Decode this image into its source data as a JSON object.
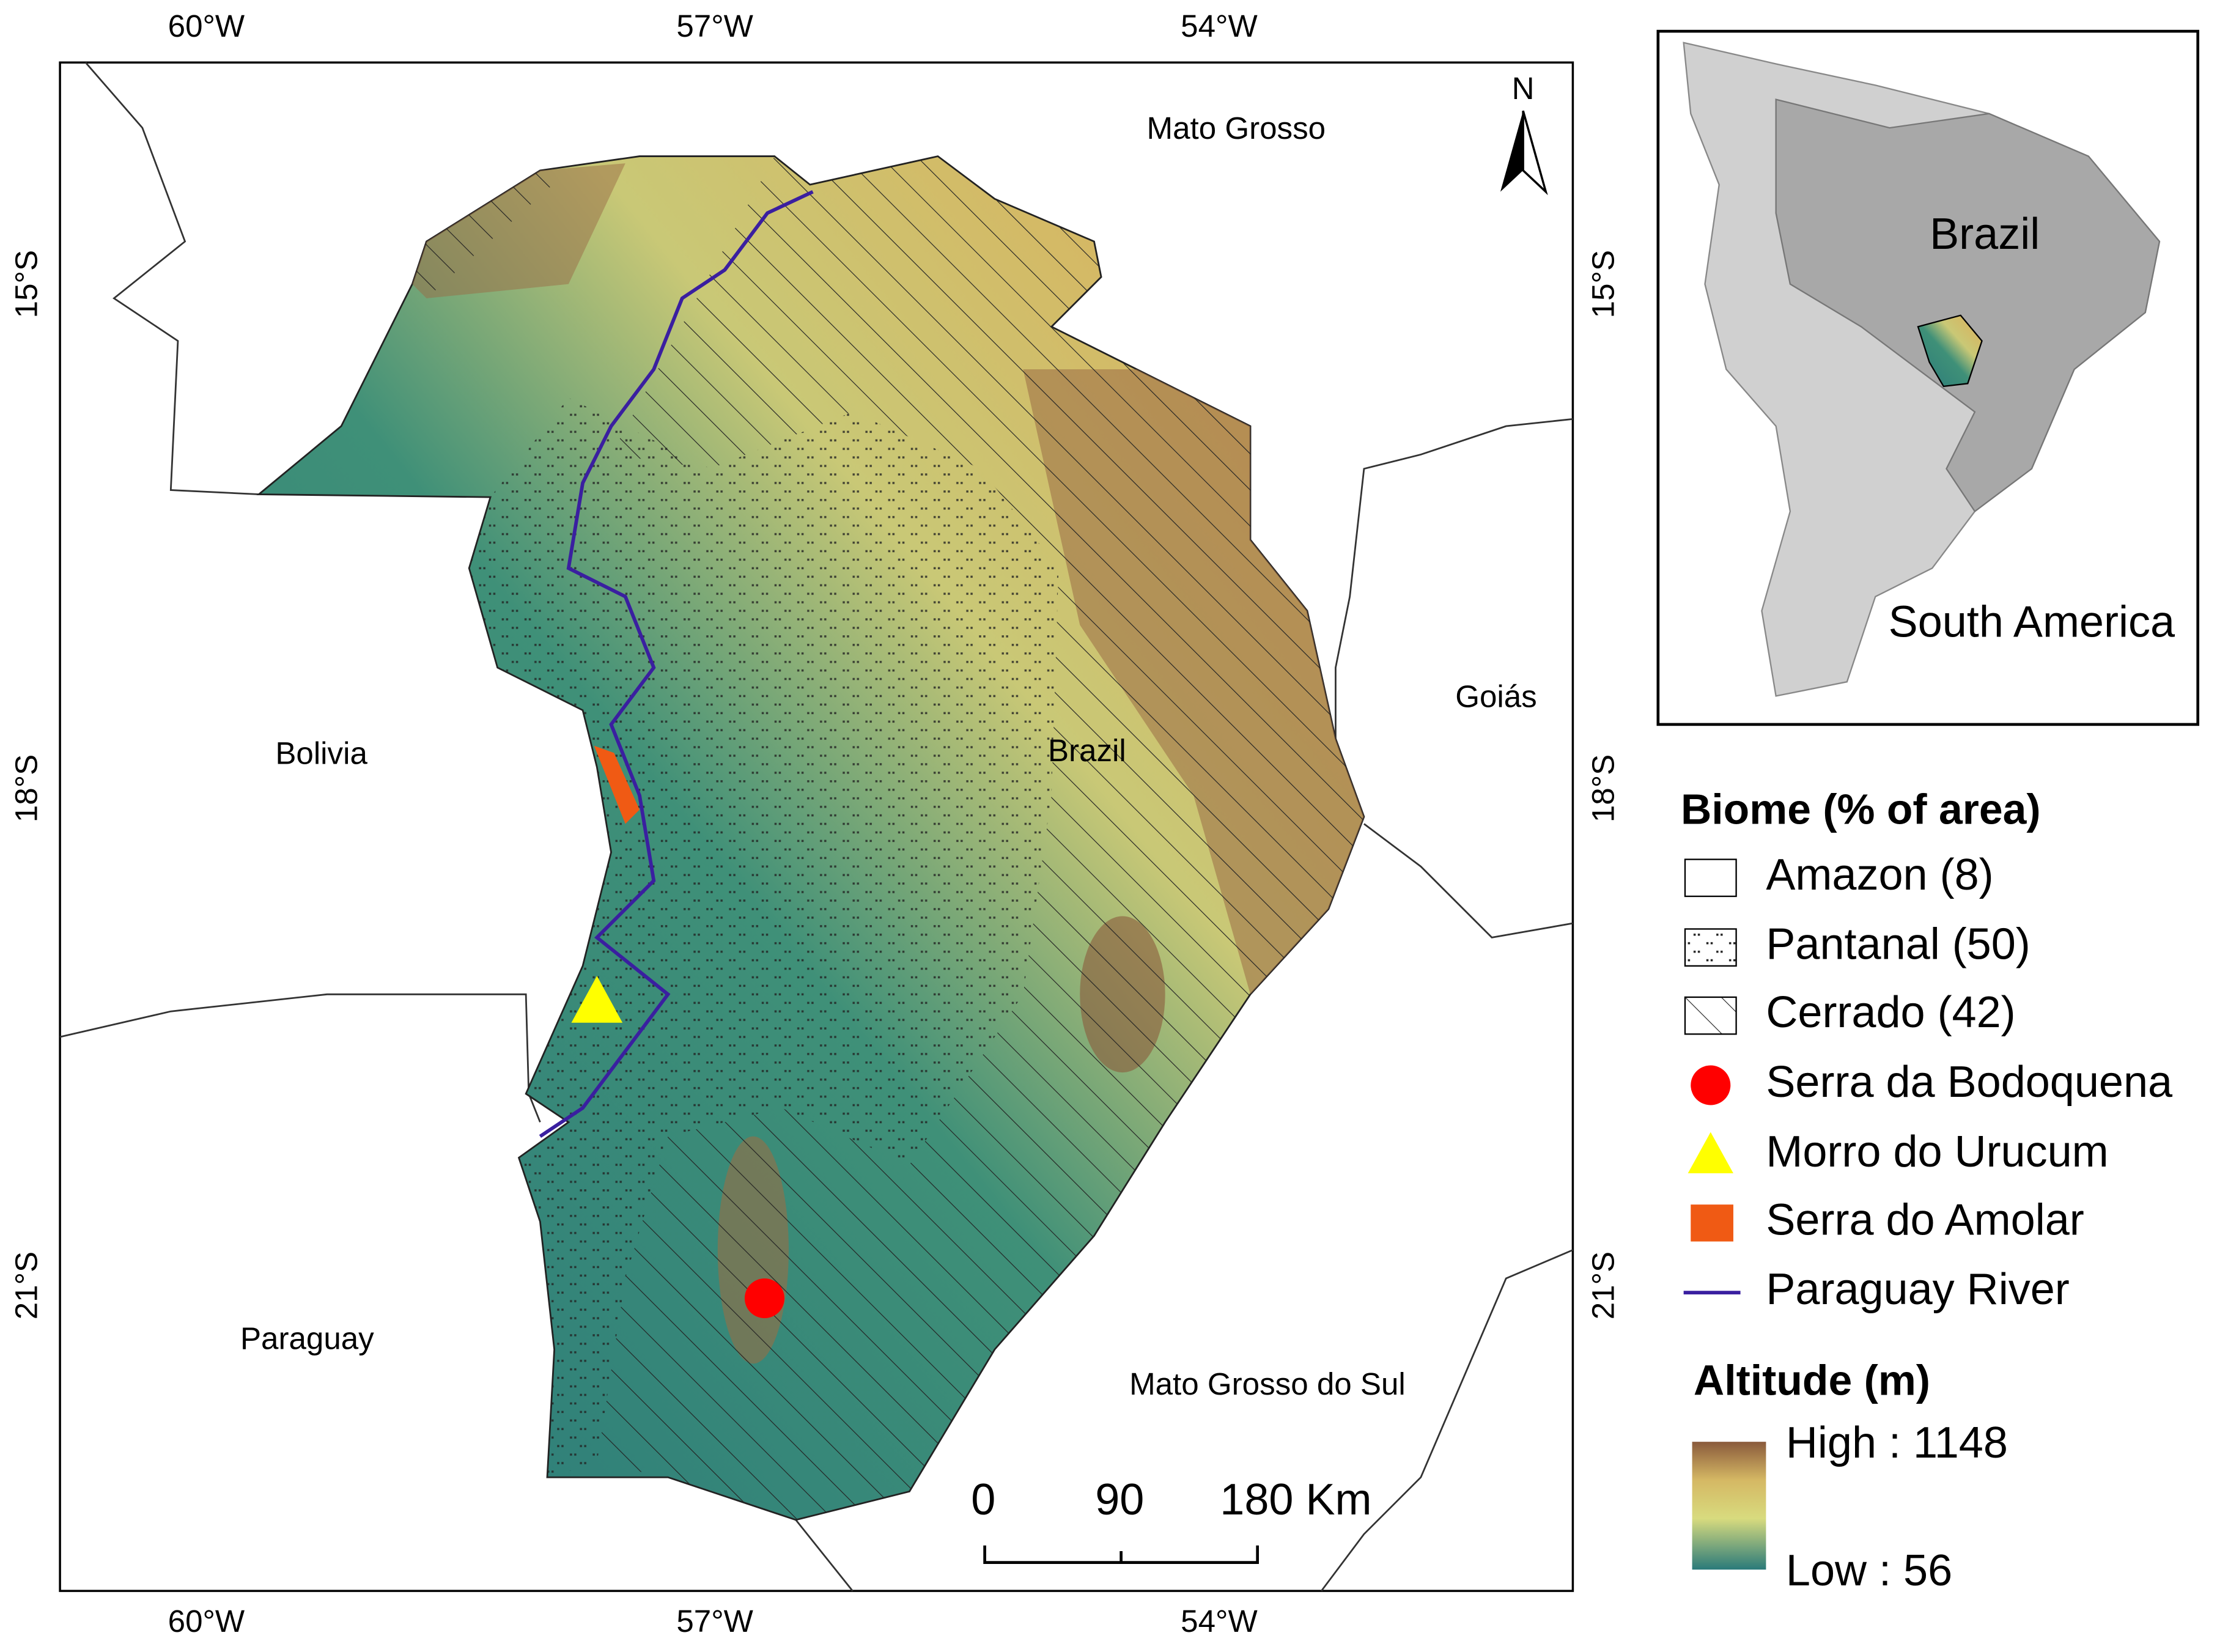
{
  "map": {
    "graticule": {
      "top": [
        "60°W",
        "57°W",
        "54°W"
      ],
      "bottom": [
        "60°W",
        "57°W",
        "54°W"
      ],
      "left": [
        "15°S",
        "18°S",
        "21°S"
      ],
      "right": [
        "15°S",
        "18°S",
        "21°S"
      ]
    },
    "place_labels": [
      "Mato Grosso",
      "Goiás",
      "Bolivia",
      "Brazil",
      "Paraguay",
      "Mato Grosso do Sul"
    ],
    "north_arrow": "N",
    "scale_bar": [
      "0",
      "90",
      "180 Km"
    ]
  },
  "inset": {
    "labels": [
      "Brazil",
      "South America"
    ]
  },
  "legend": {
    "biome_title": "Biome (% of area)",
    "items": [
      "Amazon (8)",
      "Pantanal (50)",
      "Cerrado (42)",
      "Serra da Bodoquena",
      "Morro do Urucum",
      "Serra do Amolar",
      "Paraguay River"
    ],
    "altitude_title": "Altitude (m)",
    "altitude_high": "High : 1148",
    "altitude_low": "Low : 56"
  }
}
